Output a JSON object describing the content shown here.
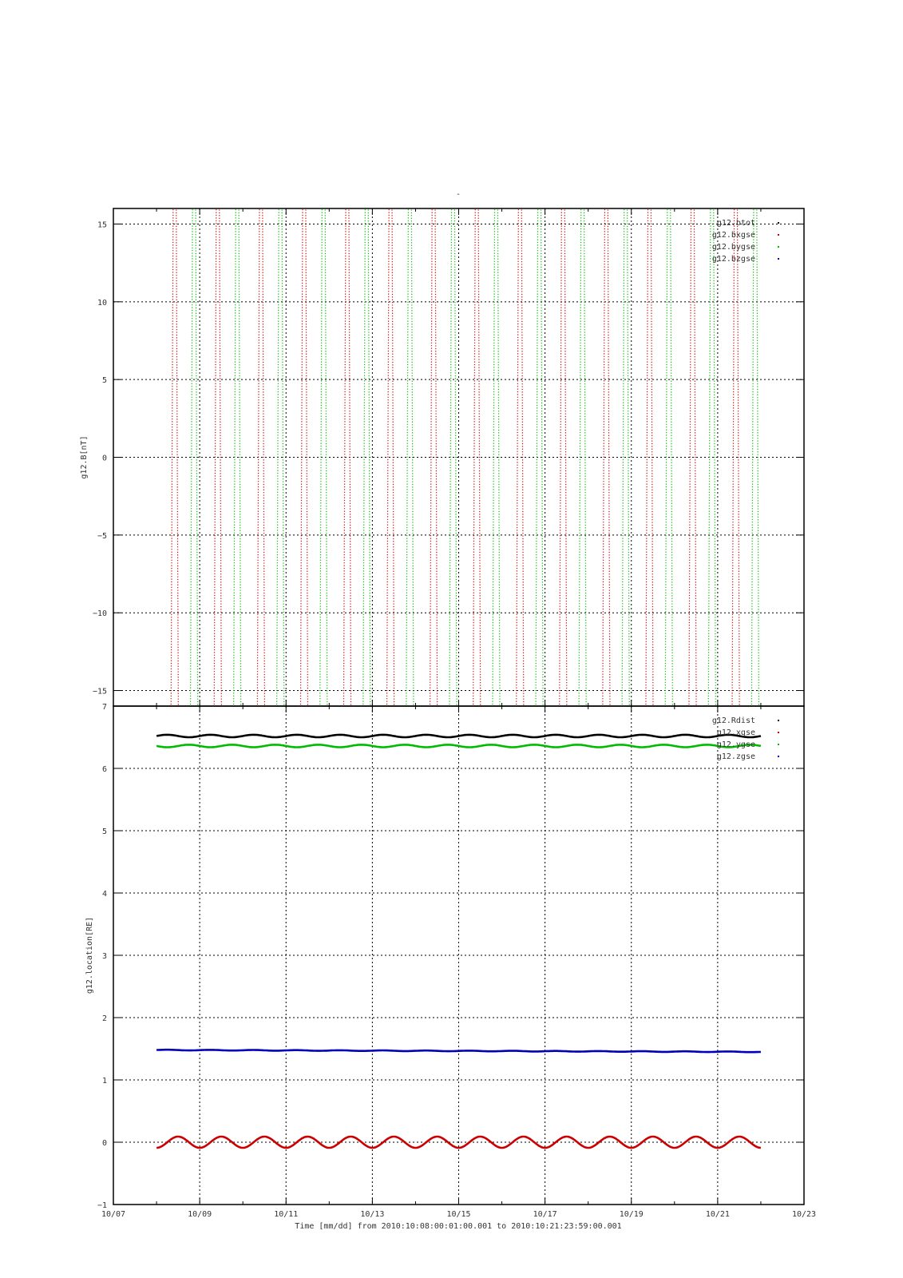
{
  "page_title": "-",
  "time_label": "Time [mm/dd]  from 2010:10:08:00:01:00.001  to  2010:10:21:23:59:00.001",
  "x_axis": {
    "range_days": [
      7,
      23
    ],
    "ticks": [
      {
        "day": 7,
        "label": "10/07"
      },
      {
        "day": 9,
        "label": "10/09"
      },
      {
        "day": 11,
        "label": "10/11"
      },
      {
        "day": 13,
        "label": "10/13"
      },
      {
        "day": 15,
        "label": "10/15"
      },
      {
        "day": 17,
        "label": "10/17"
      },
      {
        "day": 19,
        "label": "10/19"
      },
      {
        "day": 21,
        "label": "10/21"
      },
      {
        "day": 23,
        "label": "10/23"
      }
    ],
    "grid": true
  },
  "colors": {
    "black": "#000000",
    "red": "#cc0000",
    "green": "#00bb00",
    "blue": "#0000bb",
    "grid": "#000000"
  },
  "chart_data": [
    {
      "type": "line",
      "ylabel": "g12.B[nT]",
      "ylim": [
        -16,
        16
      ],
      "yticks": [
        15,
        10,
        5,
        0,
        -5,
        -10,
        -15
      ],
      "grid": true,
      "legend_position": "top-right",
      "x_start_day": 8.0,
      "x_end_day": 22.0,
      "series": [
        {
          "name": "g12.btot",
          "color": "#000000",
          "style": "dotted",
          "values": [],
          "note_value": "off-scale (above 16)"
        },
        {
          "name": "g12.bxgse",
          "color": "#cc0000",
          "style": "dotted",
          "x_start_day": 8.0,
          "x_end_day": 22.0,
          "y_min": -40,
          "y_max": 40,
          "period_days": 1.0,
          "phase_day": 8.3
        },
        {
          "name": "g12.bygse",
          "color": "#00bb00",
          "style": "dotted",
          "x_start_day": 8.0,
          "x_end_day": 22.0,
          "y_min": -40,
          "y_max": 40,
          "period_days": 1.0,
          "phase_day": 8.75
        },
        {
          "name": "g12.bzgse",
          "color": "#0000bb",
          "style": "dotted",
          "values": [],
          "note_value": "off-scale"
        }
      ]
    },
    {
      "type": "line",
      "ylabel": "g12.location[RE]",
      "ylim": [
        -1,
        7
      ],
      "yticks": [
        7,
        6,
        5,
        4,
        3,
        2,
        1,
        0,
        -1
      ],
      "grid": true,
      "legend_position": "top-right",
      "x_start_day": 8.0,
      "x_end_day": 22.0,
      "series": [
        {
          "name": "g12.Rdist",
          "color": "#000000",
          "mean": 6.52,
          "amplitude": 0.02,
          "period_days": 1.0,
          "phase_day": 8.0
        },
        {
          "name": "g12.xgse",
          "color": "#cc0000",
          "mean": 0.0,
          "amplitude": 0.09,
          "period_days": 1.0,
          "phase_day": 8.25
        },
        {
          "name": "g12.ygse",
          "color": "#00bb00",
          "mean": 6.36,
          "amplitude": 0.02,
          "period_days": 1.0,
          "phase_day": 8.5
        },
        {
          "name": "g12.zgse",
          "color": "#0000bb",
          "mean_start": 1.48,
          "mean_end": 1.45,
          "amplitude": 0.005,
          "period_days": 1.0,
          "phase_day": 8.0
        }
      ]
    }
  ]
}
